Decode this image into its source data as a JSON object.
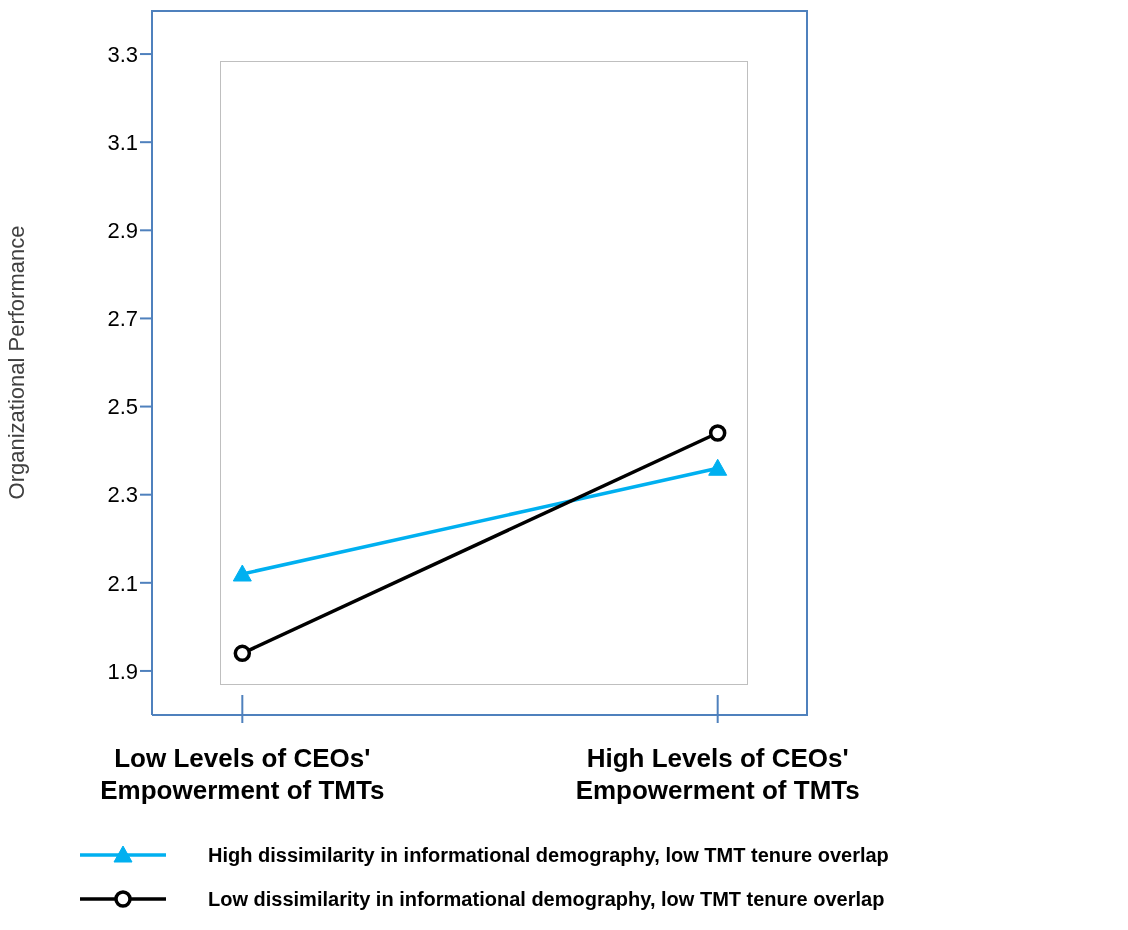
{
  "chart_data": {
    "type": "line",
    "ylabel": "Organizational Performance",
    "categories": [
      "Low Levels of CEOs' Empowerment of TMTs",
      "High Levels of CEOs' Empowerment of TMTs"
    ],
    "series": [
      {
        "name": "High dissimilarity in informational demography, low TMT tenure overlap",
        "color": "#00b0f0",
        "marker": "triangle",
        "values": [
          2.12,
          2.36
        ]
      },
      {
        "name": "Low dissimilarity in informational demography, low TMT tenure overlap",
        "color": "#000000",
        "marker": "circle",
        "values": [
          1.94,
          2.44
        ]
      }
    ],
    "ylim": [
      1.8,
      3.4
    ],
    "yticks": [
      1.9,
      2.1,
      2.3,
      2.5,
      2.7,
      2.9,
      3.1,
      3.3
    ],
    "legend": "bottom",
    "line_style": "solid"
  }
}
